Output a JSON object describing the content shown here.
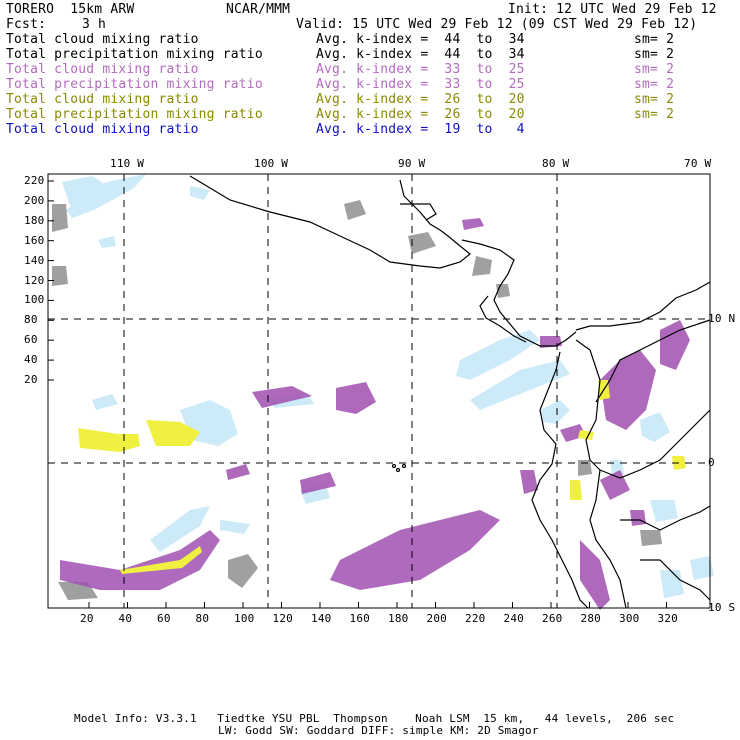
{
  "header": {
    "model": "TORERO  15km ARW",
    "org": "NCAR/MMM",
    "init": "Init: 12 UTC Wed 29 Feb 12",
    "fcst_label": "Fcst:",
    "fcst_value": "3 h",
    "valid": "Valid: 15 UTC Wed 29 Feb 12 (09 CST Wed 29 Feb 12)"
  },
  "legend_rows": [
    {
      "field": "Total cloud mixing ratio",
      "kindex": "Avg. k-index =  44  to  34",
      "sm": "sm= 2",
      "color": "#000000"
    },
    {
      "field": "Total precipitation mixing ratio",
      "kindex": "Avg. k-index =  44  to  34",
      "sm": "sm= 2",
      "color": "#000000"
    },
    {
      "field": "Total cloud mixing ratio",
      "kindex": "Avg. k-index =  33  to  25",
      "sm": "sm= 2",
      "color": "#b36bbf"
    },
    {
      "field": "Total precipitation mixing ratio",
      "kindex": "Avg. k-index =  33  to  25",
      "sm": "sm= 2",
      "color": "#b36bbf"
    },
    {
      "field": "Total cloud mixing ratio",
      "kindex": "Avg. k-index =  26  to  20",
      "sm": "sm= 2",
      "color": "#8a8a00"
    },
    {
      "field": "Total precipitation mixing ratio",
      "kindex": "Avg. k-index =  26  to  20",
      "sm": "sm= 2",
      "color": "#8a8a00"
    },
    {
      "field": "Total cloud mixing ratio",
      "kindex": "Avg. k-index =  19  to   4",
      "sm": "",
      "color": "#1010c8"
    }
  ],
  "map": {
    "lon_labels": [
      "110 W",
      "100 W",
      "90 W",
      "80 W",
      "70 W"
    ],
    "lat_labels": [
      "10 N",
      "0",
      "10 S"
    ],
    "y_ticks": [
      "220",
      "200",
      "180",
      "160",
      "140",
      "120",
      "100",
      "80",
      "60",
      "40",
      "20"
    ],
    "x_ticks": [
      "20",
      "40",
      "60",
      "80",
      "100",
      "120",
      "140",
      "160",
      "180",
      "200",
      "220",
      "240",
      "260",
      "280",
      "300",
      "320"
    ],
    "colors": {
      "gray": "#a0a0a0",
      "violet": "#a050b0",
      "yellow": "#f0f040",
      "lightblue": "#c8e8f8",
      "coast": "#000000"
    }
  },
  "footer": {
    "line1": "Model Info: V3.3.1   Tiedtke YSU PBL  Thompson    Noah LSM  15 km,   44 levels,  206 sec",
    "line2": "LW: Godd SW: Goddard DIFF: simple KM: 2D Smagor"
  }
}
